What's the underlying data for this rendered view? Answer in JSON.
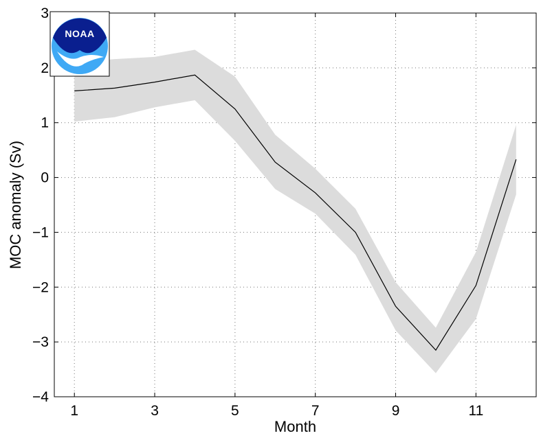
{
  "chart_data": {
    "type": "line",
    "title": "",
    "xlabel": "Month",
    "ylabel": "MOC anomaly (Sv)",
    "xlim": [
      0.5,
      12.5
    ],
    "ylim": [
      -4,
      3
    ],
    "xticks": [
      1,
      3,
      5,
      7,
      9,
      11
    ],
    "yticks": [
      3,
      2,
      1,
      0,
      -1,
      -2,
      -3,
      -4
    ],
    "ytick_labels": [
      "3",
      "2",
      "1",
      "0",
      "−1",
      "−2",
      "−3",
      "−4"
    ],
    "grid": true,
    "x": [
      1,
      2,
      3,
      4,
      5,
      6,
      7,
      8,
      9,
      10,
      11,
      12
    ],
    "series": [
      {
        "values": [
          1.58,
          1.63,
          1.74,
          1.87,
          1.25,
          0.28,
          -0.28,
          -1.0,
          -2.35,
          -3.15,
          -1.97,
          0.33
        ],
        "color": "#000000"
      }
    ],
    "band": {
      "upper": [
        2.1,
        2.16,
        2.2,
        2.33,
        1.84,
        0.78,
        0.16,
        -0.57,
        -1.91,
        -2.74,
        -1.36,
        0.96
      ],
      "lower": [
        1.02,
        1.1,
        1.28,
        1.41,
        0.67,
        -0.21,
        -0.66,
        -1.41,
        -2.79,
        -3.57,
        -2.58,
        -0.31
      ],
      "color": "#dcdcdc"
    }
  },
  "logo": {
    "text": "NOAA",
    "colors": {
      "navy": "#0a1f8f",
      "sky": "#3fa9f5",
      "white": "#ffffff"
    }
  }
}
